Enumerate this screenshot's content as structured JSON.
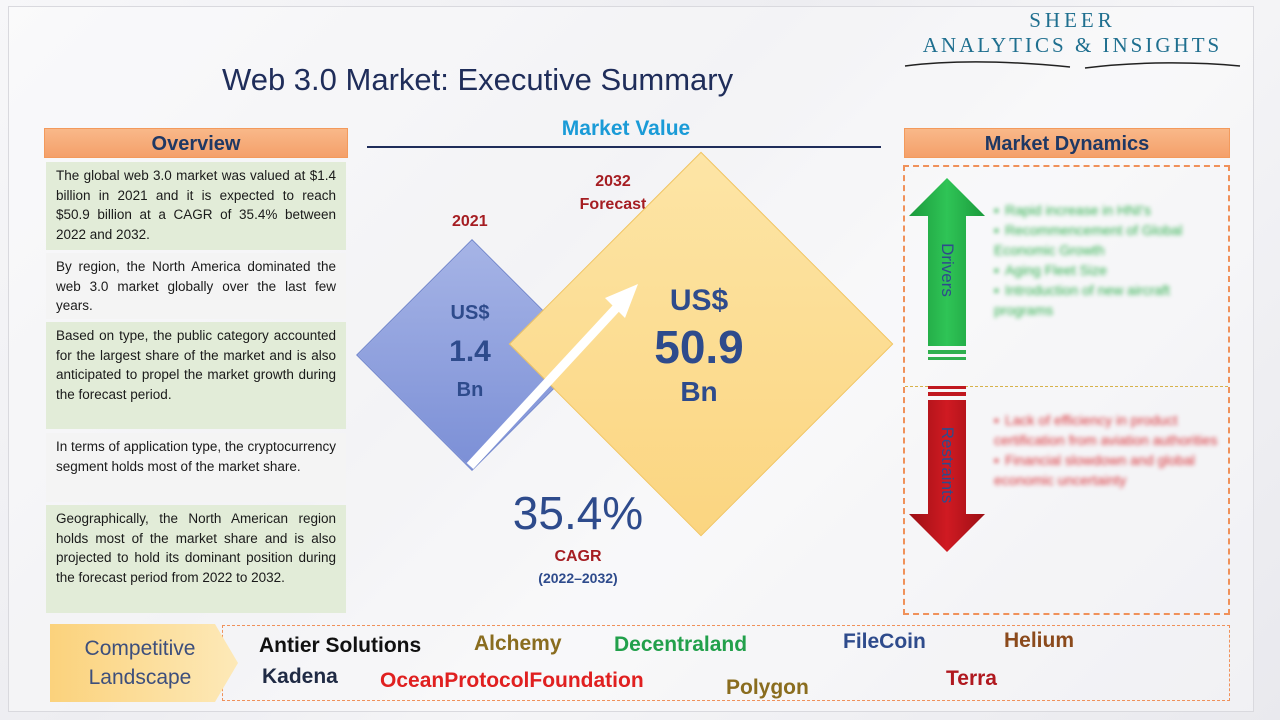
{
  "logo": {
    "line1": "SHEER",
    "line2": "ANALYTICS & INSIGHTS"
  },
  "title": "Web 3.0 Market: Executive Summary",
  "overview": {
    "header": "Overview",
    "paragraphs": [
      "The global web 3.0 market was valued at $1.4 billion in 2021 and it is expected to reach $50.9 billion at a CAGR of 35.4% between 2022 and 2032.",
      "By region, the North America dominated the web 3.0 market globally over the last few years.",
      "Based on type, the public category accounted for the largest share of the market and is also anticipated to propel the market growth during the forecast period.",
      "In terms of application type, the cryptocurrency segment holds most of the market share.",
      "Geographically, the North American region holds most of the market share and is also projected to hold its dominant position during the forecast period from 2022 to 2032."
    ]
  },
  "market_value": {
    "title": "Market Value",
    "y2021": {
      "label": "2021",
      "currency": "US$",
      "value": "1.4",
      "unit": "Bn"
    },
    "y2032": {
      "label_line1": "2032",
      "label_line2": "Forecast",
      "currency": "US$",
      "value": "50.9",
      "unit": "Bn"
    },
    "cagr": {
      "value": "35.4%",
      "label": "CAGR",
      "period": "(2022–2032)"
    }
  },
  "dynamics": {
    "header": "Market Dynamics",
    "drivers_label": "Drivers",
    "restraints_label": "Restraints",
    "drivers": [
      "Rapid increase in HNI's",
      "Recommencement of Global Economic Growth",
      "Aging Fleet Size",
      "Introduction of new aircraft programs"
    ],
    "restraints": [
      "Lack of efficiency in product certification from aviation authorities",
      "Financial slowdown and global economic uncertainty"
    ]
  },
  "competitive": {
    "label_line1": "Competitive",
    "label_line2": "Landscape",
    "companies": [
      {
        "name": "Antier Solutions",
        "color": "#111111"
      },
      {
        "name": "Alchemy",
        "color": "#8a6d1f"
      },
      {
        "name": "Decentraland",
        "color": "#22a04b"
      },
      {
        "name": "FileCoin",
        "color": "#2e4b8c"
      },
      {
        "name": "Helium",
        "color": "#8b4a1c"
      },
      {
        "name": "Kadena",
        "color": "#1f2a44"
      },
      {
        "name": "OceanProtocolFoundation",
        "color": "#e02020"
      },
      {
        "name": "Polygon",
        "color": "#8a6d1f"
      },
      {
        "name": "Terra",
        "color": "#b0181f"
      }
    ]
  }
}
